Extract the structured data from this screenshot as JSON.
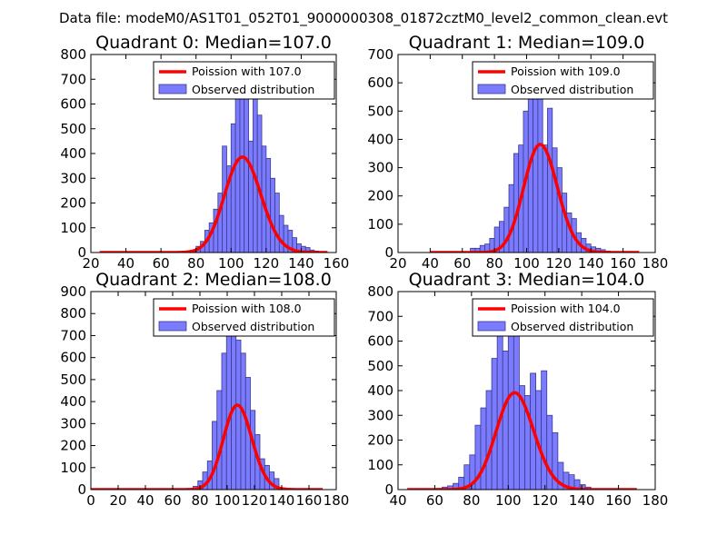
{
  "suptitle": "Data file: modeM0/AS1T01_052T01_9000000308_01872cztM0_level2_common_clean.evt",
  "colors": {
    "bar_fill": "#7b7bff",
    "bar_edge": "#3a3a8a",
    "line": "#ff0000",
    "frame": "#000000"
  },
  "chart_data": [
    {
      "type": "bar",
      "title": "Quadrant 0: Median=107.0",
      "legend": {
        "placement": "upper-right",
        "line_label": "Poission with 107.0",
        "bar_label": "Observed distribution"
      },
      "xlim": [
        20,
        160
      ],
      "ylim": [
        0,
        800
      ],
      "xticks": [
        20,
        40,
        60,
        80,
        100,
        120,
        140,
        160
      ],
      "yticks": [
        0,
        100,
        200,
        300,
        400,
        500,
        600,
        700,
        800
      ],
      "bin_start": 75,
      "bin_width": 2.5,
      "values": [
        3,
        8,
        25,
        45,
        90,
        120,
        175,
        240,
        430,
        350,
        520,
        660,
        700,
        700,
        450,
        620,
        555,
        430,
        380,
        300,
        240,
        150,
        110,
        90,
        60,
        35,
        25,
        20,
        10,
        6
      ],
      "poisson_mean": 107.0,
      "curve_x": [
        25,
        155
      ],
      "n_events": 10000
    },
    {
      "type": "bar",
      "title": "Quadrant 1: Median=109.0",
      "legend": {
        "placement": "upper-right",
        "line_label": "Poission with 109.0",
        "bar_label": "Observed distribution"
      },
      "xlim": [
        20,
        180
      ],
      "ylim": [
        0,
        700
      ],
      "xticks": [
        20,
        40,
        60,
        80,
        100,
        120,
        140,
        160,
        180
      ],
      "yticks": [
        0,
        100,
        200,
        300,
        400,
        500,
        600,
        700
      ],
      "bin_start": 65,
      "bin_width": 3,
      "values": [
        15,
        15,
        25,
        30,
        50,
        90,
        110,
        160,
        240,
        350,
        380,
        500,
        580,
        660,
        600,
        380,
        510,
        370,
        300,
        210,
        140,
        120,
        70,
        50,
        30,
        20,
        15,
        10,
        5
      ],
      "poisson_mean": 109.0,
      "curve_x": [
        40,
        170
      ],
      "n_events": 10000
    },
    {
      "type": "bar",
      "title": "Quadrant 2: Median=108.0",
      "legend": {
        "placement": "upper-right",
        "line_label": "Poission with 108.0",
        "bar_label": "Observed distribution"
      },
      "xlim": [
        0,
        180
      ],
      "ylim": [
        0,
        900
      ],
      "xticks": [
        0,
        20,
        40,
        60,
        80,
        100,
        120,
        140,
        160,
        180
      ],
      "yticks": [
        0,
        100,
        200,
        300,
        400,
        500,
        600,
        700,
        800,
        900
      ],
      "bin_start": 75,
      "bin_width": 3.5,
      "values": [
        15,
        40,
        80,
        130,
        310,
        450,
        620,
        750,
        860,
        680,
        620,
        510,
        360,
        250,
        140,
        110,
        80,
        50
      ],
      "poisson_mean": 108.0,
      "curve_x": [
        0,
        170
      ],
      "n_events": 10000
    },
    {
      "type": "bar",
      "title": "Quadrant 3: Median=104.0",
      "legend": {
        "placement": "upper-right",
        "line_label": "Poission with 104.0",
        "bar_label": "Observed distribution"
      },
      "xlim": [
        40,
        180
      ],
      "ylim": [
        0,
        800
      ],
      "xticks": [
        40,
        60,
        80,
        100,
        120,
        140,
        160,
        180
      ],
      "yticks": [
        0,
        100,
        200,
        300,
        400,
        500,
        600,
        700,
        800
      ],
      "bin_start": 61,
      "bin_width": 3,
      "values": [
        5,
        10,
        15,
        25,
        50,
        100,
        140,
        260,
        330,
        400,
        530,
        680,
        560,
        710,
        700,
        420,
        380,
        470,
        400,
        480,
        300,
        230,
        110,
        70,
        60,
        40,
        20,
        10
      ],
      "poisson_mean": 104.0,
      "curve_x": [
        45,
        170
      ],
      "n_events": 10000
    }
  ]
}
